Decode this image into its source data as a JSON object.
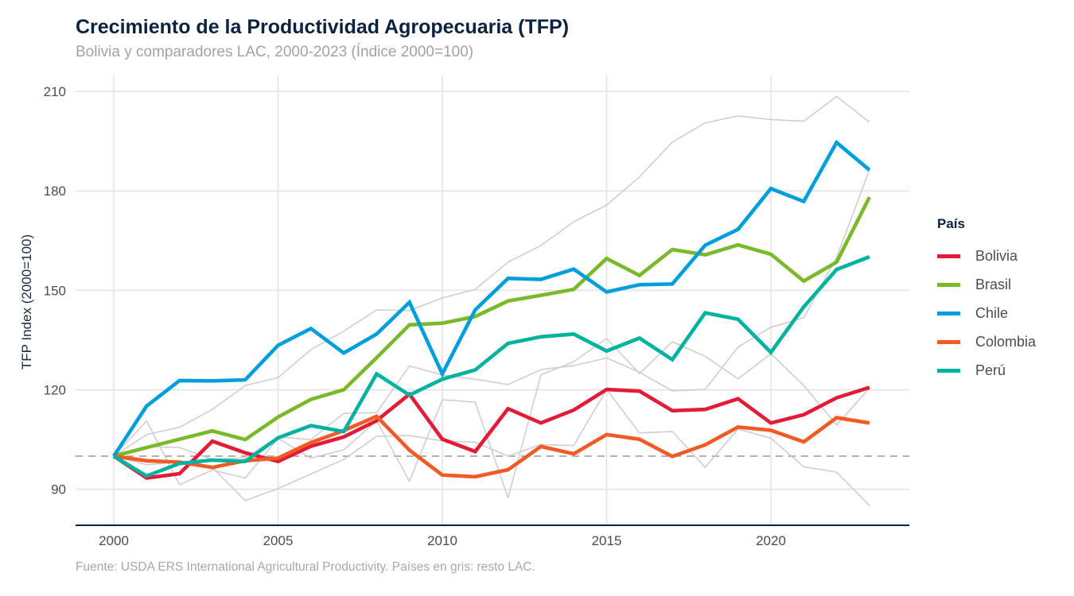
{
  "chart_data": {
    "type": "line",
    "title": "Crecimiento de la Productividad Agropecuaria (TFP)",
    "subtitle": "Bolivia y comparadores LAC, 2000-2023 (Índice 2000=100)",
    "caption": "Fuente: USDA ERS International Agricultural Productivity. Países en gris: resto LAC.",
    "xlabel": "",
    "ylabel": "TFP Index (2000=100)",
    "xlim": [
      1999,
      2024
    ],
    "ylim": [
      79,
      214
    ],
    "x_ticks": [
      2000,
      2005,
      2010,
      2015,
      2020
    ],
    "y_ticks": [
      90,
      120,
      150,
      180,
      210
    ],
    "grid": true,
    "reference_line": {
      "y": 100,
      "style": "dashed",
      "color": "#a6a6a6"
    },
    "legend": {
      "title": "País",
      "placement": "right"
    },
    "x": [
      2000,
      2001,
      2002,
      2003,
      2004,
      2005,
      2006,
      2007,
      2008,
      2009,
      2010,
      2011,
      2012,
      2013,
      2014,
      2015,
      2016,
      2017,
      2018,
      2019,
      2020,
      2021,
      2022,
      2023
    ],
    "series": [
      {
        "name": "Bolivia",
        "color": "#e31b36",
        "highlight": true,
        "values": [
          100,
          93.4,
          94.7,
          104.5,
          101.0,
          98.4,
          103.0,
          105.8,
          110.7,
          118.7,
          105.1,
          101.4,
          114.3,
          110.0,
          113.9,
          120.1,
          119.6,
          113.7,
          114.1,
          117.3,
          110.0,
          112.5,
          117.6,
          120.7
        ]
      },
      {
        "name": "Brasil",
        "color": "#7ab929",
        "highlight": true,
        "values": [
          100,
          102.6,
          105.1,
          107.6,
          105.0,
          111.8,
          117.1,
          120.0,
          129.7,
          139.6,
          140.1,
          142.1,
          146.8,
          148.5,
          150.3,
          159.6,
          154.5,
          162.3,
          160.7,
          163.7,
          160.9,
          152.8,
          158.5,
          178.1
        ]
      },
      {
        "name": "Chile",
        "color": "#009fdb",
        "highlight": true,
        "values": [
          100,
          115.1,
          122.8,
          122.7,
          123.0,
          133.4,
          138.5,
          131.1,
          136.8,
          146.4,
          124.8,
          144.1,
          153.6,
          153.3,
          156.4,
          149.5,
          151.7,
          151.9,
          163.6,
          168.4,
          180.7,
          176.8,
          194.6,
          186.3
        ]
      },
      {
        "name": "Colombia",
        "color": "#f25a24",
        "highlight": true,
        "values": [
          100,
          98.6,
          98.2,
          96.6,
          98.6,
          99.4,
          104.1,
          107.7,
          112.0,
          101.8,
          94.3,
          93.8,
          95.9,
          102.9,
          100.7,
          106.5,
          105.1,
          99.9,
          103.4,
          108.8,
          107.8,
          104.3,
          111.6,
          110.0
        ]
      },
      {
        "name": "Perú",
        "color": "#00b2a0",
        "highlight": true,
        "values": [
          100,
          94.0,
          97.8,
          98.8,
          98.4,
          105.5,
          109.2,
          107.4,
          124.8,
          118.4,
          123.2,
          126.0,
          134.0,
          136.0,
          136.8,
          131.7,
          135.6,
          129.1,
          143.2,
          141.3,
          131.3,
          145.0,
          156.3,
          160.1
        ]
      },
      {
        "name": "Resto LAC 1",
        "color": "#cfcfcf",
        "highlight": false,
        "values": [
          100,
          106.5,
          108.7,
          114.1,
          121.3,
          123.7,
          132.1,
          137.7,
          144.1,
          143.9,
          147.7,
          150.3,
          158.5,
          163.5,
          170.7,
          175.7,
          184.2,
          194.7,
          200.5,
          202.6,
          201.5,
          201.0,
          208.5,
          200.7
        ]
      },
      {
        "name": "Resto LAC 2",
        "color": "#cfcfcf",
        "highlight": false,
        "values": [
          100,
          102.9,
          102.6,
          99.0,
          99.5,
          105.8,
          105.0,
          112.9,
          113.1,
          127.2,
          124.5,
          123.2,
          121.6,
          126.1,
          127.3,
          129.6,
          125.3,
          119.7,
          120.1,
          132.9,
          138.9,
          141.7,
          160.0,
          186.3
        ]
      },
      {
        "name": "Resto LAC 3",
        "color": "#cfcfcf",
        "highlight": false,
        "values": [
          100,
          110.6,
          91.4,
          95.8,
          93.4,
          105.4,
          99.4,
          101.9,
          110.7,
          92.4,
          117.0,
          116.3,
          87.4,
          124.5,
          128.5,
          135.5,
          124.9,
          134.5,
          130.1,
          123.3,
          130.9,
          121.3,
          109.4,
          120.5
        ]
      },
      {
        "name": "Resto LAC 4",
        "color": "#cfcfcf",
        "highlight": false,
        "values": [
          100,
          97.4,
          98.2,
          96.6,
          86.6,
          90.2,
          94.6,
          99.0,
          106.0,
          106.2,
          104.6,
          104.2,
          100.0,
          103.5,
          103.2,
          120.1,
          107.0,
          107.4,
          96.6,
          108.2,
          105.4,
          96.8,
          95.2,
          85.1
        ]
      }
    ]
  }
}
